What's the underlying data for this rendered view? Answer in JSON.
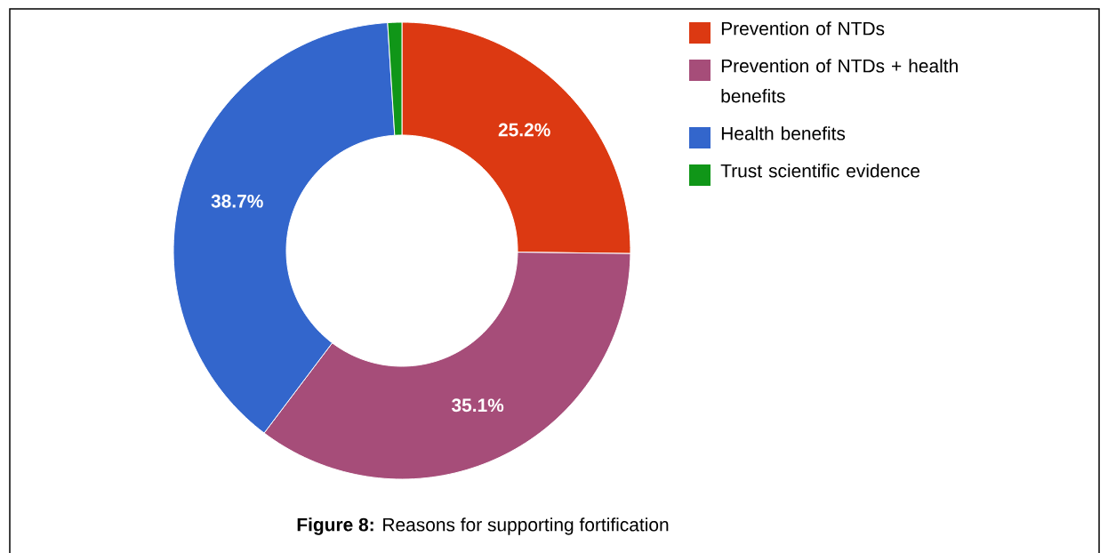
{
  "chart_data": {
    "type": "donut",
    "categories": [
      "Prevention of NTDs",
      "Prevention of NTDs + health benefits",
      "Health benefits",
      "Trust scientific evidence"
    ],
    "values": [
      25.2,
      35.1,
      38.7,
      1.0
    ],
    "colors": [
      "#dc3912",
      "#a64d79",
      "#3366cc",
      "#109618"
    ],
    "value_labels": [
      "25.2%",
      "35.1%",
      "38.7%",
      null
    ],
    "legend": "top right",
    "annotations": [
      "**Figure 8:** Reasons for supporting fortification"
    ]
  }
}
